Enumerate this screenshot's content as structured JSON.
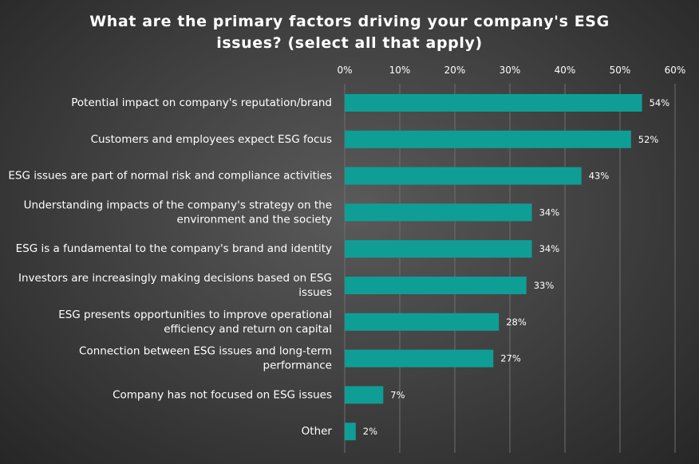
{
  "title_lines": [
    "What are the primary factors driving your company's ESG",
    "issues? (select all that apply)"
  ],
  "chart_data": {
    "type": "bar",
    "orientation": "horizontal",
    "title": "What are the primary factors driving your company's ESG issues? (select all that apply)",
    "categories": [
      [
        "Potential impact on company's reputation/brand"
      ],
      [
        "Customers and employees expect ESG focus"
      ],
      [
        "ESG issues are part of normal risk and compliance activities"
      ],
      [
        "Understanding impacts of the company's strategy on the",
        "environment and the society"
      ],
      [
        "ESG is a fundamental to the company's brand and identity"
      ],
      [
        "Investors are increasingly making decisions based on ESG",
        "issues"
      ],
      [
        "ESG presents opportunities to improve operational",
        "efficiency and return on capital"
      ],
      [
        "Connection between ESG issues and long-term",
        "performance"
      ],
      [
        "Company has not focused on ESG issues"
      ],
      [
        "Other"
      ]
    ],
    "values": [
      54,
      52,
      43,
      34,
      34,
      33,
      28,
      27,
      7,
      2
    ],
    "data_labels": [
      "54%",
      "52%",
      "43%",
      "34%",
      "34%",
      "33%",
      "28%",
      "27%",
      "7%",
      "2%"
    ],
    "x_ticks": [
      0,
      10,
      20,
      30,
      40,
      50,
      60
    ],
    "x_tick_labels": [
      "0%",
      "10%",
      "20%",
      "30%",
      "40%",
      "50%",
      "60%"
    ],
    "xlim": [
      0,
      60
    ],
    "xaxis_position": "top",
    "grid": true,
    "legend": "none",
    "colors": {
      "bar": "#0f9e96",
      "gridline": "#6e6e6e",
      "text": "#ffffff"
    }
  }
}
